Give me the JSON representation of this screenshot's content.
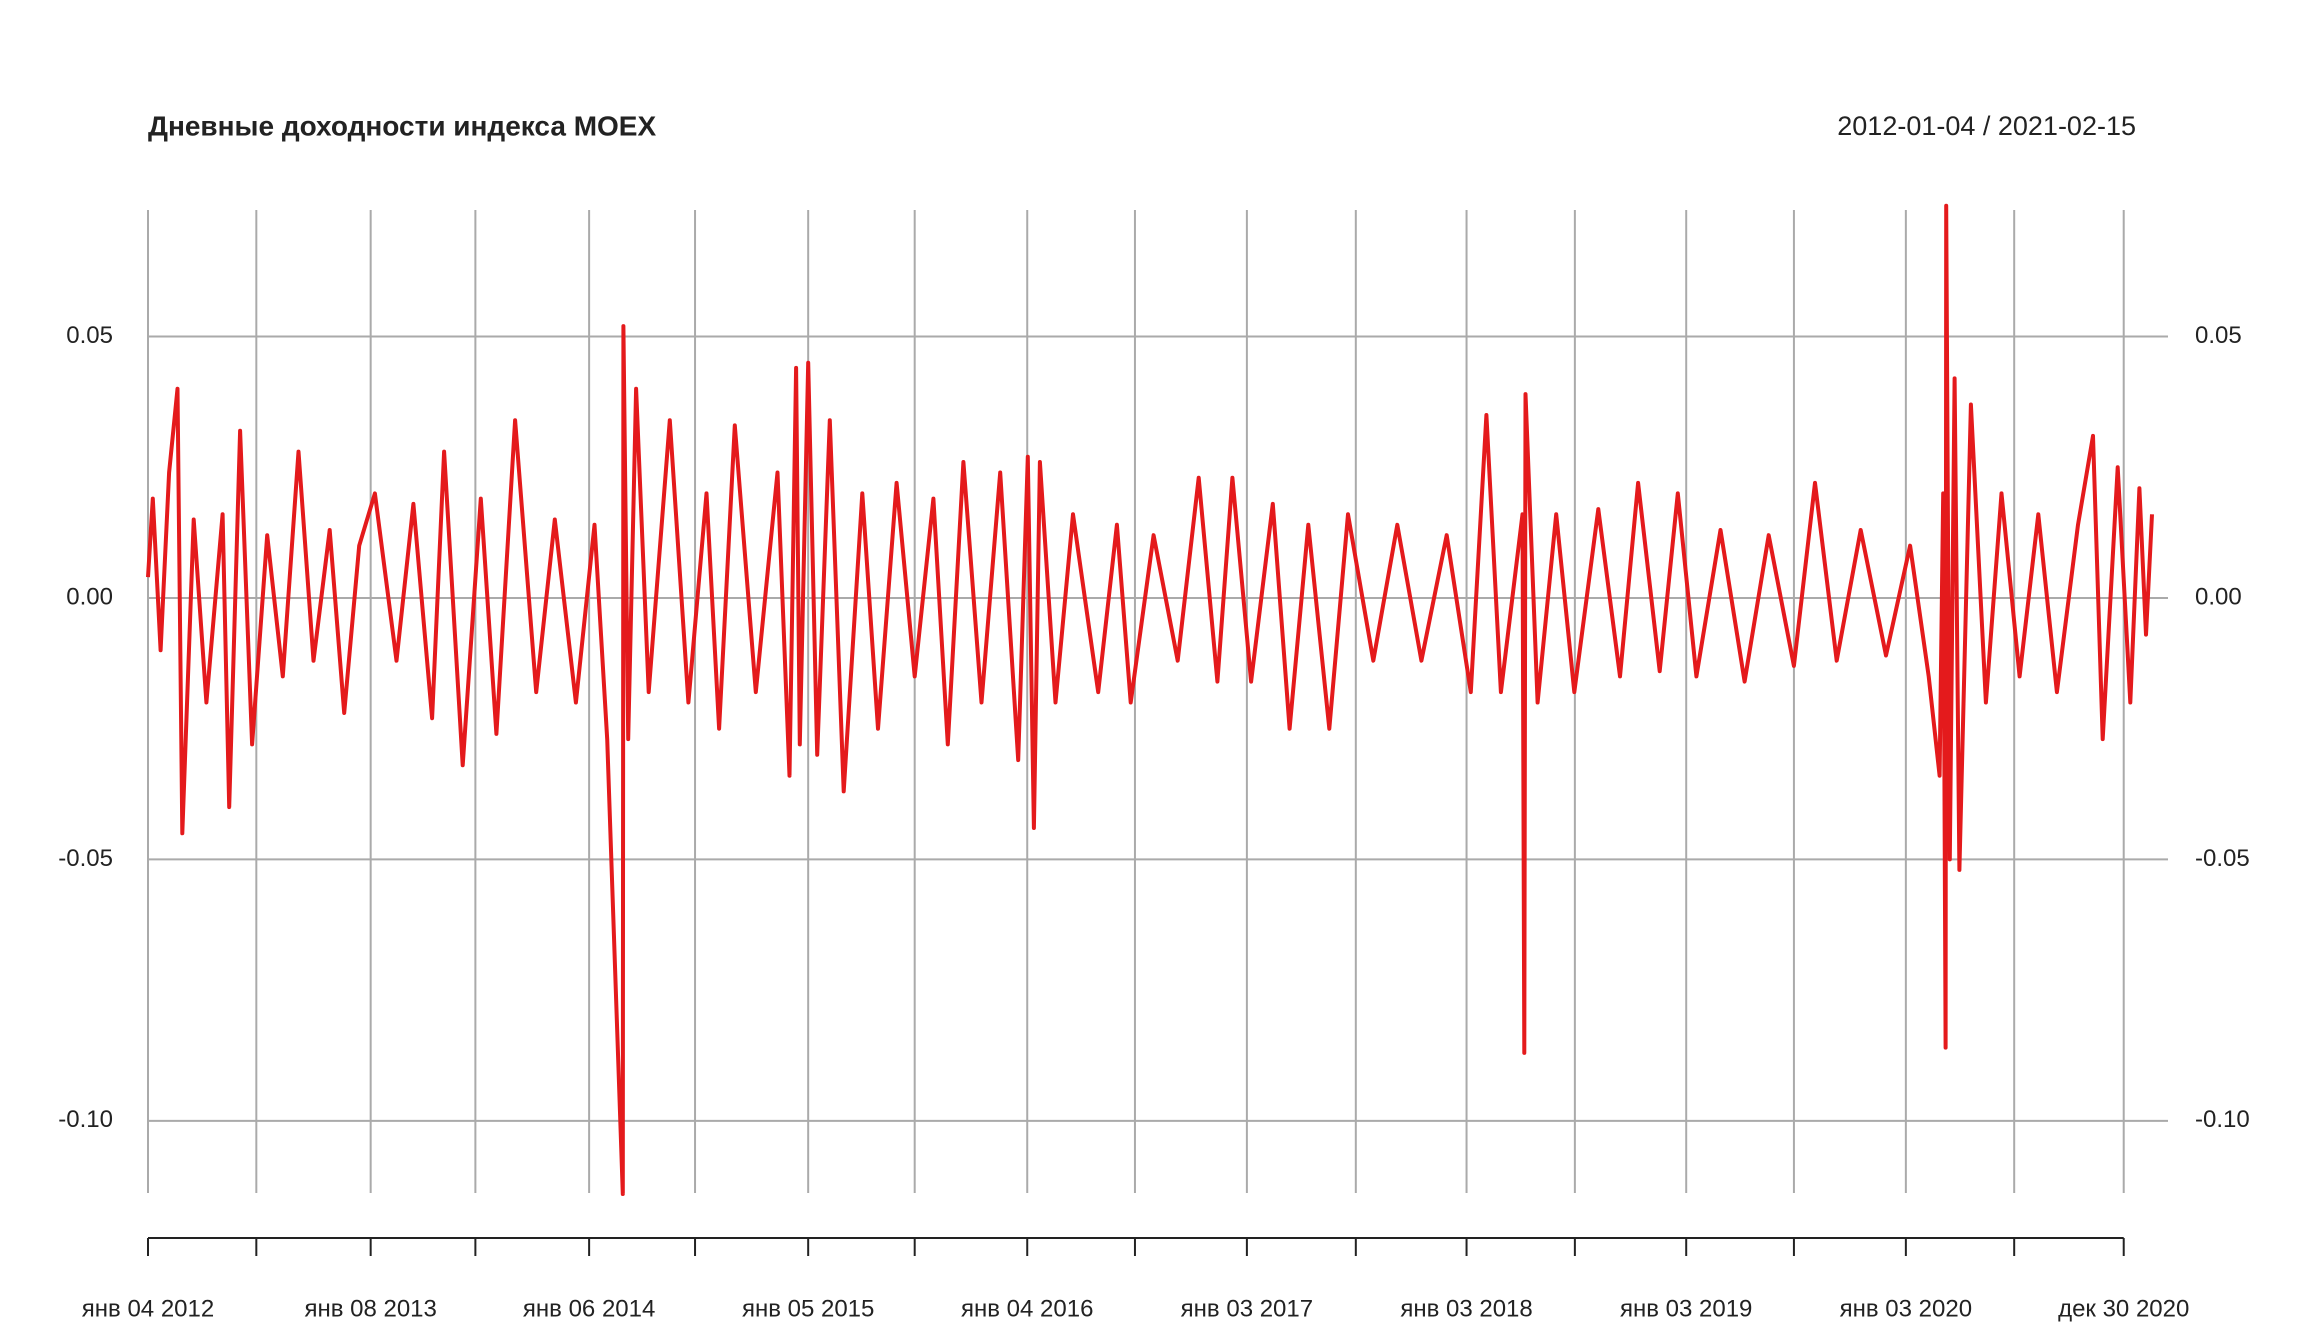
{
  "chart_data": {
    "type": "line",
    "title": "Дневные доходности индекса MOEX",
    "subtitle": "2012-01-04 / 2021-02-15",
    "xlim": [
      "2012-01-04",
      "2021-02-15"
    ],
    "ylim": [
      -0.1138,
      0.0742
    ],
    "yticks": [
      0.05,
      {
        "value": 0,
        "label": "0.00"
      },
      -0.05,
      {
        "value": -0.1,
        "label": "-0.10"
      }
    ],
    "xticks": [
      {
        "value": "2012-01-04",
        "label": "янв 04 2012"
      },
      {
        "value": "2012-07-02",
        "label": null
      },
      {
        "value": "2013-01-08",
        "label": "янв 08 2013"
      },
      {
        "value": "2013-07-01",
        "label": null
      },
      {
        "value": "2014-01-06",
        "label": "янв 06 2014"
      },
      {
        "value": "2014-07-01",
        "label": null
      },
      {
        "value": "2015-01-05",
        "label": "янв 05 2015"
      },
      {
        "value": "2015-07-01",
        "label": null
      },
      {
        "value": "2016-01-04",
        "label": "янв 04 2016"
      },
      {
        "value": "2016-07-01",
        "label": null
      },
      {
        "value": "2017-01-03",
        "label": "янв 03 2017"
      },
      {
        "value": "2017-07-03",
        "label": null
      },
      {
        "value": "2018-01-03",
        "label": "янв 03 2018"
      },
      {
        "value": "2018-07-02",
        "label": null
      },
      {
        "value": "2019-01-03",
        "label": "янв 03 2019"
      },
      {
        "value": "2019-07-01",
        "label": null
      },
      {
        "value": "2020-01-03",
        "label": "янв 03 2020"
      },
      {
        "value": "2020-07-01",
        "label": null
      },
      {
        "value": "2020-12-30",
        "label": "дек 30 2020"
      }
    ],
    "grid": true,
    "x": [
      "2012-01-04",
      "2012-01-12",
      "2012-01-25",
      "2012-02-08",
      "2012-02-22",
      "2012-03-01",
      "2012-03-20",
      "2012-04-10",
      "2012-05-07",
      "2012-05-18",
      "2012-06-05",
      "2012-06-25",
      "2012-07-20",
      "2012-08-15",
      "2012-09-10",
      "2012-10-05",
      "2012-11-01",
      "2012-11-25",
      "2012-12-20",
      "2013-01-15",
      "2013-02-20",
      "2013-03-20",
      "2013-04-20",
      "2013-05-10",
      "2013-06-10",
      "2013-07-10",
      "2013-08-05",
      "2013-09-05",
      "2013-10-10",
      "2013-11-10",
      "2013-12-15",
      "2014-01-15",
      "2014-02-05",
      "2014-03-03",
      "2014-03-04",
      "2014-03-12",
      "2014-03-25",
      "2014-04-15",
      "2014-05-20",
      "2014-06-20",
      "2014-07-20",
      "2014-08-10",
      "2014-09-05",
      "2014-10-10",
      "2014-11-15",
      "2014-12-05",
      "2014-12-16",
      "2014-12-22",
      "2015-01-05",
      "2015-01-20",
      "2015-02-10",
      "2015-03-05",
      "2015-04-05",
      "2015-05-01",
      "2015-06-01",
      "2015-07-01",
      "2015-08-01",
      "2015-08-25",
      "2015-09-20",
      "2015-10-20",
      "2015-11-20",
      "2015-12-20",
      "2016-01-05",
      "2016-01-15",
      "2016-01-25",
      "2016-02-20",
      "2016-03-20",
      "2016-05-01",
      "2016-06-01",
      "2016-06-24",
      "2016-08-01",
      "2016-09-10",
      "2016-10-15",
      "2016-11-15",
      "2016-12-10",
      "2017-01-10",
      "2017-02-15",
      "2017-03-15",
      "2017-04-15",
      "2017-05-20",
      "2017-06-20",
      "2017-08-01",
      "2017-09-10",
      "2017-10-20",
      "2017-12-01",
      "2018-01-10",
      "2018-02-05",
      "2018-03-01",
      "2018-04-06",
      "2018-04-09",
      "2018-04-11",
      "2018-05-01",
      "2018-06-01",
      "2018-07-01",
      "2018-08-10",
      "2018-09-15",
      "2018-10-15",
      "2018-11-20",
      "2018-12-20",
      "2019-01-20",
      "2019-03-01",
      "2019-04-10",
      "2019-05-20",
      "2019-07-01",
      "2019-08-05",
      "2019-09-10",
      "2019-10-20",
      "2019-12-01",
      "2020-01-10",
      "2020-02-10",
      "2020-02-28",
      "2020-03-05",
      "2020-03-09",
      "2020-03-10",
      "2020-03-16",
      "2020-03-24",
      "2020-04-01",
      "2020-04-20",
      "2020-05-15",
      "2020-06-10",
      "2020-07-10",
      "2020-08-10",
      "2020-09-10",
      "2020-10-15",
      "2020-11-09",
      "2020-11-25",
      "2020-12-20",
      "2021-01-10",
      "2021-01-25",
      "2021-02-05",
      "2021-02-15"
    ],
    "series": [
      {
        "name": "MOEX",
        "color": "#e41a1c",
        "values": [
          0.004,
          0.019,
          -0.01,
          0.024,
          0.04,
          -0.045,
          0.015,
          -0.02,
          0.016,
          -0.04,
          0.032,
          -0.028,
          0.012,
          -0.015,
          0.028,
          -0.012,
          0.013,
          -0.022,
          0.01,
          0.02,
          -0.012,
          0.018,
          -0.023,
          0.028,
          -0.032,
          0.019,
          -0.026,
          0.034,
          -0.018,
          0.015,
          -0.02,
          0.014,
          -0.027,
          -0.114,
          0.052,
          -0.027,
          0.04,
          -0.018,
          0.034,
          -0.02,
          0.02,
          -0.025,
          0.033,
          -0.018,
          0.024,
          -0.034,
          0.044,
          -0.028,
          0.045,
          -0.03,
          0.034,
          -0.037,
          0.02,
          -0.025,
          0.022,
          -0.015,
          0.019,
          -0.028,
          0.026,
          -0.02,
          0.024,
          -0.031,
          0.027,
          -0.044,
          0.026,
          -0.02,
          0.016,
          -0.018,
          0.014,
          -0.02,
          0.012,
          -0.012,
          0.023,
          -0.016,
          0.023,
          -0.016,
          0.018,
          -0.025,
          0.014,
          -0.025,
          0.016,
          -0.012,
          0.014,
          -0.012,
          0.012,
          -0.018,
          0.035,
          -0.018,
          0.016,
          -0.087,
          0.039,
          -0.02,
          0.016,
          -0.018,
          0.017,
          -0.015,
          0.022,
          -0.014,
          0.02,
          -0.015,
          0.013,
          -0.016,
          0.012,
          -0.013,
          0.022,
          -0.012,
          0.013,
          -0.011,
          0.01,
          -0.015,
          -0.034,
          0.02,
          -0.086,
          0.075,
          -0.05,
          0.042,
          -0.052,
          0.037,
          -0.02,
          0.02,
          -0.015,
          0.016,
          -0.018,
          0.014,
          0.031,
          -0.027,
          0.025,
          -0.02,
          0.021,
          -0.007,
          0.016
        ]
      }
    ]
  }
}
